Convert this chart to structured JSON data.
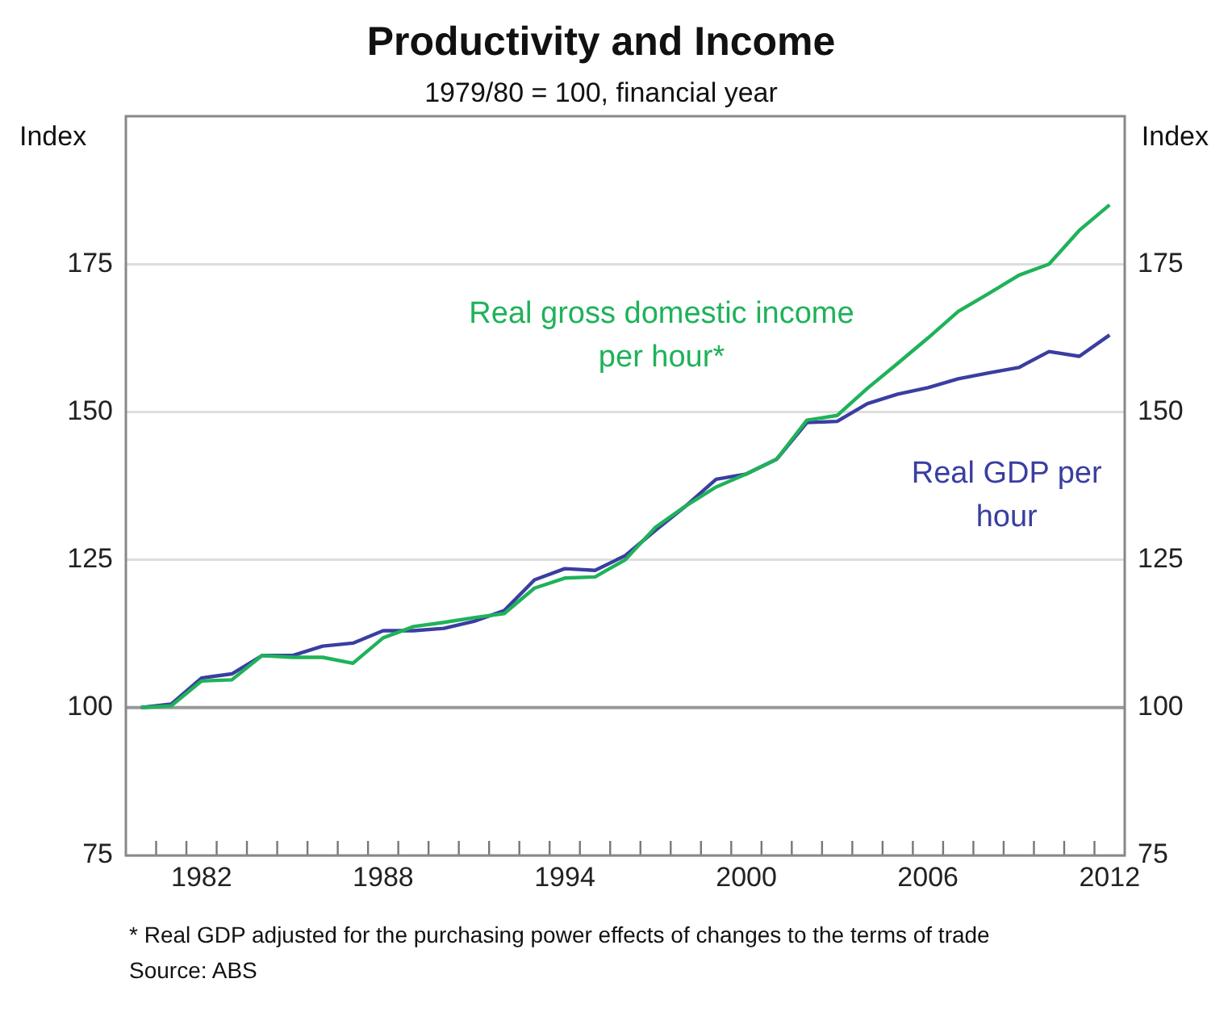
{
  "chart_data": {
    "type": "line",
    "title": "Productivity and Income",
    "subtitle": "1979/80 = 100, financial year",
    "ylabel": "Index",
    "y2label": "Index",
    "x": [
      1980,
      1981,
      1982,
      1983,
      1984,
      1985,
      1986,
      1987,
      1988,
      1989,
      1990,
      1991,
      1992,
      1993,
      1994,
      1995,
      1996,
      1997,
      1998,
      1999,
      2000,
      2001,
      2002,
      2003,
      2004,
      2005,
      2006,
      2007,
      2008,
      2009,
      2010,
      2011,
      2012
    ],
    "series": [
      {
        "name": "Real gross domestic income per hour*",
        "color": "#1fb25a",
        "values": [
          100,
          100.3,
          104.5,
          104.7,
          108.8,
          108.5,
          108.5,
          107.5,
          111.8,
          113.7,
          114.4,
          115.2,
          115.9,
          120.2,
          121.9,
          122.1,
          125,
          130.5,
          134.1,
          137.3,
          139.5,
          142,
          148.6,
          149.4,
          154,
          158.2,
          162.5,
          167,
          170,
          173.1,
          175,
          180.7,
          185
        ]
      },
      {
        "name": "Real GDP per hour",
        "color": "#3a3ea0",
        "values": [
          100,
          100.6,
          105,
          105.7,
          108.8,
          108.8,
          110.4,
          110.9,
          113,
          113,
          113.4,
          114.6,
          116.4,
          121.6,
          123.5,
          123.2,
          125.7,
          130,
          134.1,
          138.6,
          139.5,
          142,
          148.2,
          148.4,
          151.4,
          153,
          154.1,
          155.6,
          156.6,
          157.5,
          160.2,
          159.4,
          163
        ]
      }
    ],
    "xlim": [
      1979.5,
      2012.5
    ],
    "xticks": [
      {
        "value": 1980.5,
        "label": null
      },
      {
        "value": 1981.5,
        "label": null
      },
      {
        "value": 1982,
        "label": "1982"
      },
      {
        "value": 1982.5,
        "label": null
      },
      {
        "value": 1983.5,
        "label": null
      },
      {
        "value": 1984.5,
        "label": null
      },
      {
        "value": 1985.5,
        "label": null
      },
      {
        "value": 1986.5,
        "label": null
      },
      {
        "value": 1987.5,
        "label": null
      },
      {
        "value": 1988,
        "label": "1988"
      },
      {
        "value": 1988.5,
        "label": null
      },
      {
        "value": 1989.5,
        "label": null
      },
      {
        "value": 1990.5,
        "label": null
      },
      {
        "value": 1991.5,
        "label": null
      },
      {
        "value": 1992.5,
        "label": null
      },
      {
        "value": 1993.5,
        "label": null
      },
      {
        "value": 1994,
        "label": "1994"
      },
      {
        "value": 1994.5,
        "label": null
      },
      {
        "value": 1995.5,
        "label": null
      },
      {
        "value": 1996.5,
        "label": null
      },
      {
        "value": 1997.5,
        "label": null
      },
      {
        "value": 1998.5,
        "label": null
      },
      {
        "value": 1999.5,
        "label": null
      },
      {
        "value": 2000,
        "label": "2000"
      },
      {
        "value": 2000.5,
        "label": null
      },
      {
        "value": 2001.5,
        "label": null
      },
      {
        "value": 2002.5,
        "label": null
      },
      {
        "value": 2003.5,
        "label": null
      },
      {
        "value": 2004.5,
        "label": null
      },
      {
        "value": 2005.5,
        "label": null
      },
      {
        "value": 2006,
        "label": "2006"
      },
      {
        "value": 2006.5,
        "label": null
      },
      {
        "value": 2007.5,
        "label": null
      },
      {
        "value": 2008.5,
        "label": null
      },
      {
        "value": 2009.5,
        "label": null
      },
      {
        "value": 2010.5,
        "label": null
      },
      {
        "value": 2011.5,
        "label": null
      },
      {
        "value": 2012,
        "label": "2012"
      }
    ],
    "ylim": [
      75,
      200
    ],
    "yticks": [
      75,
      100,
      125,
      150,
      175
    ],
    "y2lim": [
      75,
      200
    ],
    "y2ticks": [
      75,
      100,
      125,
      150,
      175
    ],
    "ref_lines": [
      {
        "axis": "y",
        "value": 100,
        "color": "#999999"
      }
    ],
    "grid": "y",
    "legend": false,
    "marker": "none",
    "line_style": "solid",
    "annotations": [
      "*    Real GDP adjusted for the purchasing power effects of changes to the terms of trade",
      "Source: ABS"
    ]
  }
}
